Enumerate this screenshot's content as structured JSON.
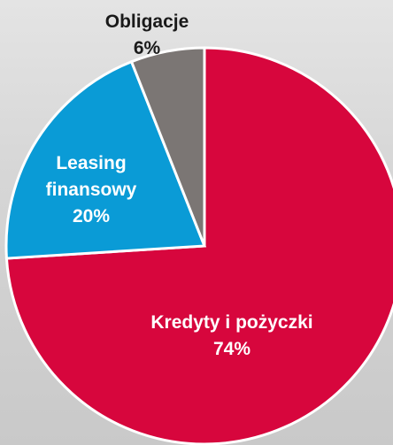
{
  "chart_data": {
    "type": "pie",
    "categories": [
      "Kredyty i pożyczki",
      "Leasing finansowy",
      "Obligacje"
    ],
    "values": [
      74,
      20,
      6
    ],
    "value_labels": [
      "74%",
      "20%",
      "6%"
    ],
    "colors": [
      "#d7063d",
      "#0a9bd6",
      "#7b7674"
    ]
  }
}
